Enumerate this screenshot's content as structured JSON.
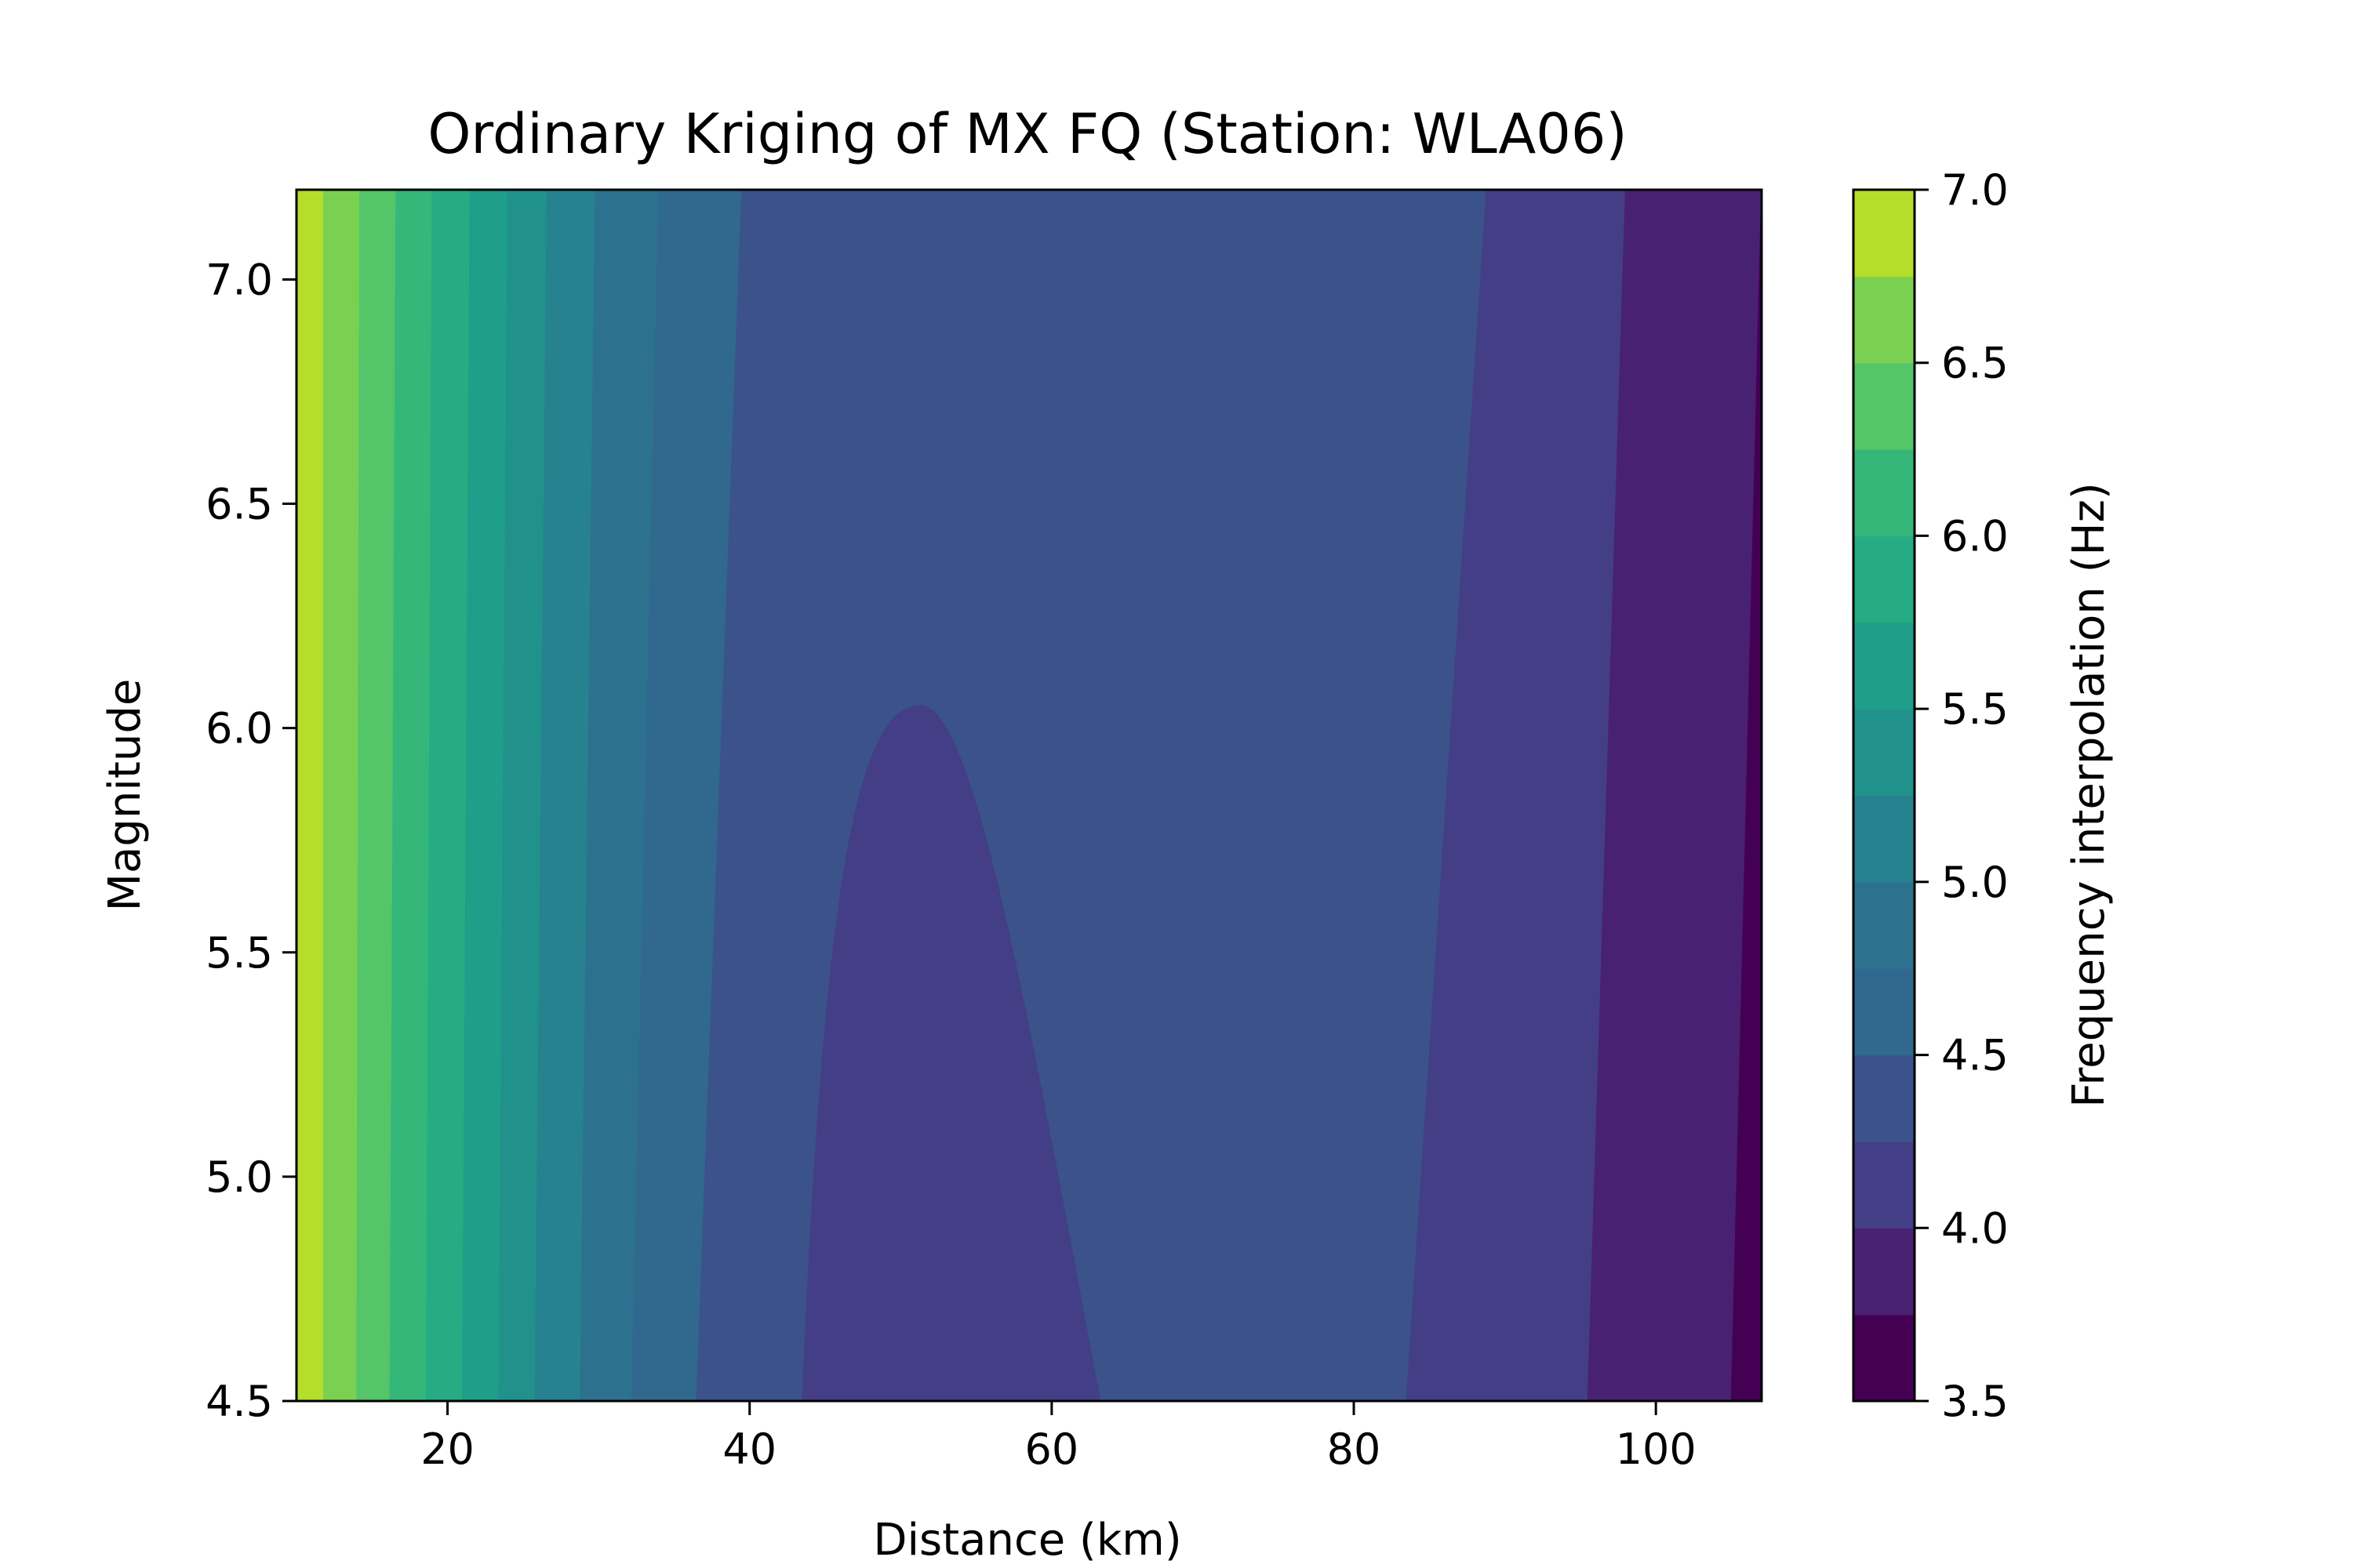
{
  "chart_data": {
    "type": "heatmap",
    "subtype": "filled-contour",
    "title": "Ordinary Kriging of MX FQ (Station: WLA06)",
    "xlabel": "Distance (km)",
    "ylabel": "Magnitude",
    "xlim": [
      10,
      107
    ],
    "ylim": [
      4.5,
      7.2
    ],
    "xticks": [
      20,
      40,
      60,
      80,
      100
    ],
    "yticks": [
      4.5,
      5.0,
      5.5,
      6.0,
      6.5,
      7.0
    ],
    "xtick_labels": [
      "20",
      "40",
      "60",
      "80",
      "100"
    ],
    "ytick_labels": [
      "4.5",
      "5.0",
      "5.5",
      "6.0",
      "6.5",
      "7.0"
    ],
    "colormap": "viridis",
    "colorbar": {
      "label": "Frequency interpolation (Hz)",
      "range": [
        3.5,
        7.0
      ],
      "level_step": 0.25,
      "ticks": [
        3.5,
        4.0,
        4.5,
        5.0,
        5.5,
        6.0,
        6.5,
        7.0
      ],
      "tick_labels": [
        "3.5",
        "4.0",
        "4.5",
        "5.0",
        "5.5",
        "6.0",
        "6.5",
        "7.0"
      ],
      "colors": [
        "#440154",
        "#482173",
        "#433e85",
        "#3b528b",
        "#31688e",
        "#2c728e",
        "#26828e",
        "#21918c",
        "#1f9e89",
        "#25ac82",
        "#35b779",
        "#54c568",
        "#7ad151",
        "#b5de2b",
        "#e5e419"
      ]
    },
    "grid": false,
    "bands": [
      {
        "level": [
          6.75,
          7.0
        ],
        "x_low": [
          10,
          10
        ],
        "x_high": [
          11.8,
          11.8
        ]
      },
      {
        "level": [
          6.5,
          6.75
        ],
        "x_low": [
          11.8,
          11.8
        ],
        "x_high": [
          14.0,
          14.2
        ]
      },
      {
        "level": [
          6.25,
          6.5
        ],
        "x_low": [
          14.0,
          14.2
        ],
        "x_high": [
          16.2,
          16.6
        ]
      },
      {
        "level": [
          6.0,
          6.25
        ],
        "x_low": [
          16.2,
          16.6
        ],
        "x_high": [
          18.6,
          19.0
        ]
      },
      {
        "level": [
          5.75,
          6.0
        ],
        "x_low": [
          18.6,
          19.0
        ],
        "x_high": [
          21.0,
          21.5
        ]
      },
      {
        "level": [
          5.5,
          5.75
        ],
        "x_low": [
          21.0,
          21.5
        ],
        "x_high": [
          23.4,
          24.0
        ]
      },
      {
        "level": [
          5.25,
          5.5
        ],
        "x_low": [
          23.4,
          24.0
        ],
        "x_high": [
          25.8,
          26.6
        ]
      },
      {
        "level": [
          5.0,
          5.25
        ],
        "x_low": [
          25.8,
          26.6
        ],
        "x_high": [
          28.8,
          29.8
        ]
      },
      {
        "level": [
          4.75,
          5.0
        ],
        "x_low": [
          28.8,
          29.8
        ],
        "x_high": [
          32.2,
          34.0
        ]
      },
      {
        "level": [
          4.5,
          4.75
        ],
        "x_low": [
          32.2,
          34.0
        ],
        "x_high": [
          36.5,
          39.5
        ]
      },
      {
        "level": [
          4.25,
          4.5
        ],
        "x_low": [
          36.5,
          39.5
        ],
        "x_high": [
          83.5,
          88.8
        ]
      },
      {
        "level": [
          4.0,
          4.25
        ],
        "x_low": [
          83.5,
          88.8
        ],
        "x_high": [
          95.5,
          98.0
        ]
      },
      {
        "level": [
          3.75,
          4.0
        ],
        "x_low": [
          95.5,
          98.0
        ],
        "x_high": [
          105.0,
          107.0
        ]
      },
      {
        "level": [
          3.5,
          3.75
        ],
        "x_low": [
          105.0,
          107.0
        ],
        "x_high": [
          107.0,
          107.0
        ]
      }
    ],
    "lobe": {
      "level": [
        4.0,
        4.25
      ],
      "base_x": [
        43.5,
        63.2
      ],
      "peak": {
        "x": 51.3,
        "y": 6.05
      }
    }
  }
}
